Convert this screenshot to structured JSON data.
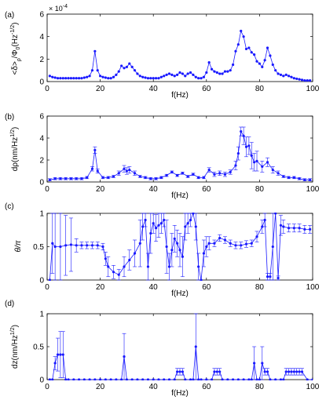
{
  "figure": {
    "panels_count": 4
  },
  "chart_data": [
    {
      "type": "line",
      "panel_label": "(a)",
      "xlabel": "f(Hz)",
      "ylabel": "<δ>ρ/Φ0(Hz^-1/2)",
      "ylabel_main": "<δ>",
      "ylabel_sub": "ρ",
      "ylabel_tail": "/Φ",
      "ylabel_tail_sub": "0",
      "ylabel_unit": "(Hz",
      "ylabel_unit_sup": "-1/2",
      "ylabel_unit_close": ")",
      "multiplier_base": "× 10",
      "multiplier_exp": "-4",
      "xlim": [
        0,
        100
      ],
      "ylim": [
        0,
        6
      ],
      "xticks": [
        0,
        20,
        40,
        60,
        80,
        100
      ],
      "yticks": [
        0,
        2,
        4,
        6
      ],
      "color": "#1a1aff",
      "error_bars": false,
      "x": [
        1,
        2,
        3,
        4,
        5,
        6,
        7,
        8,
        9,
        10,
        11,
        12,
        13,
        14,
        15,
        16,
        17,
        18,
        19,
        20,
        21,
        22,
        23,
        24,
        25,
        26,
        27,
        28,
        29,
        30,
        31,
        32,
        33,
        34,
        35,
        36,
        37,
        38,
        39,
        40,
        41,
        42,
        43,
        44,
        45,
        46,
        47,
        48,
        49,
        50,
        51,
        52,
        53,
        54,
        55,
        56,
        57,
        58,
        59,
        60,
        61,
        62,
        63,
        64,
        65,
        66,
        67,
        68,
        69,
        70,
        71,
        72,
        73,
        74,
        75,
        76,
        77,
        78,
        79,
        80,
        81,
        82,
        83,
        84,
        85,
        86,
        87,
        88,
        89,
        90,
        91,
        92,
        93,
        94,
        95,
        96,
        97,
        98,
        99
      ],
      "y": [
        0.5,
        0.4,
        0.35,
        0.3,
        0.3,
        0.3,
        0.3,
        0.3,
        0.3,
        0.3,
        0.3,
        0.3,
        0.3,
        0.35,
        0.4,
        0.5,
        1.0,
        2.7,
        1.0,
        0.5,
        0.4,
        0.35,
        0.3,
        0.3,
        0.4,
        0.6,
        0.9,
        1.4,
        1.2,
        1.3,
        1.6,
        1.3,
        1.0,
        0.7,
        0.5,
        0.4,
        0.35,
        0.3,
        0.3,
        0.3,
        0.3,
        0.3,
        0.4,
        0.5,
        0.6,
        0.7,
        0.6,
        0.5,
        0.6,
        0.8,
        0.7,
        0.5,
        0.7,
        0.8,
        0.6,
        0.4,
        0.3,
        0.3,
        0.4,
        0.8,
        1.7,
        1.1,
        0.9,
        0.8,
        0.7,
        0.7,
        0.9,
        0.9,
        1.0,
        1.5,
        2.7,
        3.3,
        4.5,
        4.0,
        2.9,
        3.0,
        2.6,
        2.4,
        1.8,
        1.6,
        1.3,
        1.9,
        3.0,
        2.3,
        1.5,
        1.0,
        0.7,
        0.6,
        0.5,
        0.6,
        0.5,
        0.4,
        0.3,
        0.25,
        0.2,
        0.15,
        0.1,
        0.1,
        0.1
      ]
    },
    {
      "type": "line",
      "panel_label": "(b)",
      "xlabel": "f(Hz)",
      "ylabel": "dρ(nm/Hz1/2)",
      "ylabel_main": "dρ(nm/Hz",
      "ylabel_unit_sup": "1/2",
      "ylabel_unit_close": ")",
      "xlim": [
        0,
        100
      ],
      "ylim": [
        0,
        6
      ],
      "xticks": [
        0,
        20,
        40,
        60,
        80,
        100
      ],
      "yticks": [
        0,
        2,
        4,
        6
      ],
      "color": "#1a1aff",
      "error_bars": true,
      "x": [
        1,
        3,
        5,
        7,
        9,
        11,
        13,
        15,
        17,
        18,
        19,
        21,
        23,
        25,
        27,
        29,
        30,
        31,
        33,
        35,
        37,
        39,
        41,
        43,
        45,
        47,
        49,
        51,
        53,
        55,
        57,
        59,
        61,
        63,
        65,
        67,
        69,
        71,
        72,
        73,
        74,
        75,
        76,
        77,
        78,
        79,
        81,
        83,
        85,
        87,
        89,
        91,
        93,
        95,
        97,
        99
      ],
      "y": [
        0.2,
        0.3,
        0.3,
        0.3,
        0.3,
        0.3,
        0.3,
        0.4,
        1.2,
        2.9,
        1.0,
        0.4,
        0.4,
        0.5,
        0.8,
        1.2,
        1.0,
        1.1,
        0.8,
        0.5,
        0.4,
        0.3,
        0.3,
        0.4,
        0.6,
        0.9,
        0.6,
        0.8,
        0.5,
        0.7,
        0.4,
        0.4,
        1.1,
        0.7,
        0.8,
        0.7,
        0.9,
        1.5,
        2.6,
        4.6,
        4.2,
        3.2,
        3.3,
        2.4,
        1.8,
        1.9,
        1.4,
        1.8,
        1.1,
        0.8,
        0.5,
        0.4,
        0.4,
        0.3,
        0.2,
        0.2
      ],
      "err": [
        0.1,
        0.1,
        0.1,
        0.1,
        0.1,
        0.1,
        0.1,
        0.1,
        0.2,
        0.3,
        0.2,
        0.1,
        0.1,
        0.1,
        0.2,
        0.3,
        0.3,
        0.3,
        0.2,
        0.1,
        0.1,
        0.1,
        0.1,
        0.1,
        0.1,
        0.1,
        0.1,
        0.1,
        0.1,
        0.1,
        0.1,
        0.1,
        0.2,
        0.2,
        0.2,
        0.2,
        0.2,
        0.4,
        0.6,
        0.4,
        0.8,
        0.9,
        0.8,
        1.2,
        0.8,
        0.9,
        0.5,
        0.4,
        0.3,
        0.2,
        0.1,
        0.1,
        0.1,
        0.1,
        0.1,
        0.1
      ]
    },
    {
      "type": "line",
      "panel_label": "(c)",
      "xlabel": "f(Hz)",
      "ylabel": "θ/π",
      "xlim": [
        0,
        100
      ],
      "ylim": [
        0,
        1
      ],
      "xticks": [
        0,
        20,
        40,
        60,
        80,
        100
      ],
      "yticks": [
        0,
        0.5,
        1
      ],
      "color": "#1a1aff",
      "error_bars": true,
      "x": [
        1,
        2,
        3,
        5,
        7,
        9,
        11,
        13,
        15,
        17,
        19,
        21,
        22,
        23,
        25,
        27,
        29,
        31,
        33,
        35,
        36,
        37,
        38,
        39,
        40,
        41,
        42,
        43,
        44,
        45,
        46,
        47,
        48,
        49,
        50,
        51,
        52,
        53,
        54,
        55,
        56,
        57,
        58,
        59,
        60,
        61,
        63,
        65,
        67,
        69,
        71,
        73,
        75,
        77,
        79,
        81,
        82,
        83,
        84,
        85,
        86,
        87,
        88,
        89,
        91,
        93,
        95,
        97,
        99
      ],
      "y": [
        0.0,
        0.55,
        0.5,
        0.5,
        0.52,
        0.53,
        0.52,
        0.52,
        0.52,
        0.52,
        0.52,
        0.5,
        0.32,
        0.2,
        0.12,
        0.08,
        0.2,
        0.3,
        0.4,
        0.55,
        0.8,
        0.9,
        0.2,
        0.7,
        0.85,
        0.78,
        0.82,
        0.85,
        0.9,
        0.5,
        0.2,
        0.45,
        0.62,
        0.55,
        0.45,
        0.35,
        0.8,
        0.85,
        0.9,
        1.0,
        0.8,
        0.2,
        0.0,
        0.4,
        0.5,
        0.55,
        0.55,
        0.63,
        0.6,
        0.55,
        0.52,
        0.52,
        0.54,
        0.55,
        0.65,
        0.8,
        0.9,
        0.05,
        0.05,
        0.5,
        1.0,
        0.03,
        0.82,
        0.8,
        0.78,
        0.78,
        0.78,
        0.76,
        0.76
      ],
      "err": [
        0.0,
        0.45,
        0.5,
        0.5,
        0.45,
        0.4,
        0.1,
        0.05,
        0.05,
        0.05,
        0.05,
        0.05,
        0.1,
        0.15,
        0.1,
        0.08,
        0.15,
        0.15,
        0.2,
        0.35,
        0.2,
        0.1,
        0.2,
        0.3,
        0.15,
        0.2,
        0.18,
        0.15,
        0.1,
        0.4,
        0.2,
        0.25,
        0.2,
        0.2,
        0.25,
        0.3,
        0.2,
        0.15,
        0.1,
        0.0,
        0.2,
        0.2,
        0.0,
        0.2,
        0.15,
        0.1,
        0.05,
        0.05,
        0.05,
        0.05,
        0.05,
        0.05,
        0.05,
        0.05,
        0.08,
        0.1,
        0.1,
        0.05,
        0.05,
        0.5,
        0.0,
        0.03,
        0.15,
        0.1,
        0.06,
        0.06,
        0.06,
        0.06,
        0.06
      ]
    },
    {
      "type": "line",
      "panel_label": "(d)",
      "xlabel": "f(Hz)",
      "ylabel": "dz(nm/Hz1/2)",
      "ylabel_main": "dz(nm/Hz",
      "ylabel_unit_sup": "1/2",
      "ylabel_unit_close": ")",
      "xlim": [
        0,
        100
      ],
      "ylim": [
        0,
        1
      ],
      "xticks": [
        0,
        20,
        40,
        60,
        80,
        100
      ],
      "yticks": [
        0,
        0.5,
        1
      ],
      "color": "#1a1aff",
      "error_bars": true,
      "x": [
        1,
        2,
        3,
        4,
        5,
        6,
        7,
        8,
        10,
        12,
        14,
        16,
        18,
        20,
        22,
        24,
        26,
        28,
        29,
        30,
        32,
        34,
        36,
        38,
        40,
        42,
        44,
        46,
        48,
        49,
        50,
        51,
        52,
        54,
        55,
        56,
        57,
        58,
        60,
        62,
        63,
        64,
        65,
        66,
        68,
        70,
        72,
        74,
        76,
        77,
        78,
        79,
        80,
        81,
        82,
        83,
        84,
        86,
        88,
        89,
        90,
        91,
        92,
        93,
        94,
        95,
        96,
        98,
        100
      ],
      "y": [
        0,
        0,
        0.25,
        0.38,
        0.38,
        0.38,
        0.0,
        0.0,
        0.0,
        0.0,
        0.0,
        0.0,
        0.0,
        0.0,
        0.0,
        0.0,
        0.0,
        0.0,
        0.35,
        0.0,
        0.0,
        0.0,
        0.0,
        0.0,
        0.0,
        0.0,
        0.0,
        0.0,
        0.0,
        0.12,
        0.12,
        0.12,
        0.0,
        0.0,
        0.0,
        0.5,
        0.0,
        0.0,
        0.0,
        0.0,
        0.12,
        0.12,
        0.12,
        0.0,
        0.0,
        0.0,
        0.0,
        0.0,
        0.0,
        0.0,
        0.25,
        0.0,
        0.0,
        0.25,
        0.12,
        0.12,
        0.0,
        0.0,
        0.0,
        0.0,
        0.12,
        0.12,
        0.12,
        0.12,
        0.12,
        0.12,
        0.12,
        0.0,
        0.0
      ],
      "err": [
        0,
        0,
        0.1,
        0.25,
        0.35,
        0.35,
        0,
        0,
        0,
        0,
        0,
        0,
        0,
        0,
        0,
        0,
        0,
        0,
        0.35,
        0,
        0,
        0,
        0,
        0,
        0,
        0,
        0,
        0,
        0,
        0.05,
        0.05,
        0.05,
        0,
        0,
        0,
        0.5,
        0,
        0,
        0,
        0,
        0.05,
        0.05,
        0.05,
        0,
        0,
        0,
        0,
        0,
        0,
        0,
        0.25,
        0,
        0,
        0.25,
        0.05,
        0.05,
        0,
        0,
        0,
        0,
        0.05,
        0.05,
        0.05,
        0.05,
        0.05,
        0.05,
        0.05,
        0,
        0
      ]
    }
  ]
}
